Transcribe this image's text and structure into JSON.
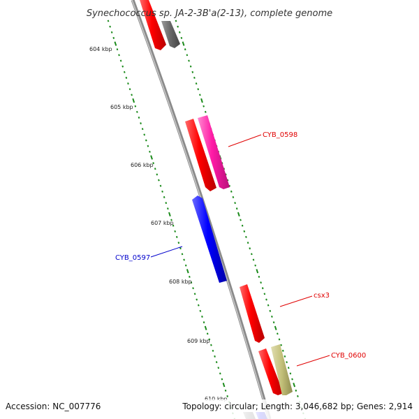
{
  "title": "Synechococcus sp. JA-2-3B'a(2-13), complete genome",
  "accession": "Accession: NC_007776",
  "topology": "Topology: circular; Length: 3,046,682 bp; Genes: 2,914",
  "kbp_labels": [
    "604 kbp",
    "605 kbp",
    "606 kbp",
    "607 kbp",
    "608 kbp",
    "609 kbp",
    "610 kbp"
  ],
  "gene_labels": {
    "cyb0598": "CYB_0598",
    "cyb0597": "CYB_0597",
    "csx3": "csx3",
    "cyb0600": "CYB_0600"
  },
  "colors": {
    "backbone": "#7a7a7a",
    "cds_red": "#ff0000",
    "cds_pink": "#ff1aa6",
    "cds_blue": "#0000ff",
    "cds_gray": "#666666",
    "cds_olive": "#c2bf78",
    "tick_green": "#1a8a1a",
    "label_red": "#e00000",
    "label_blue": "#0000cc"
  }
}
